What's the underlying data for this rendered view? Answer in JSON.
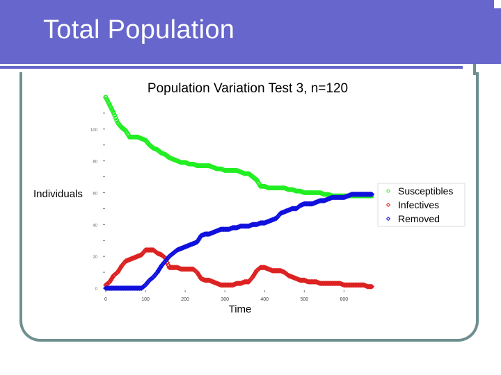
{
  "slide": {
    "title": "Total Population"
  },
  "chart_data": {
    "type": "scatter",
    "title": "Population Variation Test 3, n=120",
    "xlabel": "Time",
    "ylabel": "Individuals",
    "xlim": [
      0,
      680
    ],
    "ylim": [
      0,
      120
    ],
    "xticks": [
      0,
      100,
      200,
      300,
      400,
      500,
      600
    ],
    "yticks": [
      0,
      20,
      40,
      60,
      80,
      100
    ],
    "legend_position": "right",
    "series": [
      {
        "name": "Susceptibles",
        "color": "#22ee22",
        "marker": "circle",
        "points": [
          [
            0,
            120
          ],
          [
            10,
            115
          ],
          [
            20,
            110
          ],
          [
            30,
            104
          ],
          [
            40,
            101
          ],
          [
            50,
            99
          ],
          [
            60,
            95
          ],
          [
            70,
            95
          ],
          [
            80,
            95
          ],
          [
            90,
            94
          ],
          [
            100,
            93
          ],
          [
            110,
            90
          ],
          [
            120,
            88
          ],
          [
            130,
            87
          ],
          [
            140,
            85
          ],
          [
            150,
            84
          ],
          [
            160,
            82
          ],
          [
            170,
            81
          ],
          [
            180,
            80
          ],
          [
            190,
            79
          ],
          [
            200,
            79
          ],
          [
            210,
            78
          ],
          [
            220,
            78
          ],
          [
            230,
            77
          ],
          [
            240,
            77
          ],
          [
            250,
            77
          ],
          [
            260,
            77
          ],
          [
            270,
            76
          ],
          [
            280,
            75
          ],
          [
            290,
            75
          ],
          [
            300,
            74
          ],
          [
            310,
            74
          ],
          [
            320,
            74
          ],
          [
            330,
            74
          ],
          [
            340,
            73
          ],
          [
            350,
            72
          ],
          [
            360,
            72
          ],
          [
            370,
            70
          ],
          [
            380,
            68
          ],
          [
            390,
            64
          ],
          [
            400,
            64
          ],
          [
            410,
            63
          ],
          [
            420,
            63
          ],
          [
            430,
            63
          ],
          [
            440,
            63
          ],
          [
            450,
            63
          ],
          [
            460,
            62
          ],
          [
            470,
            62
          ],
          [
            480,
            61
          ],
          [
            490,
            61
          ],
          [
            500,
            60
          ],
          [
            510,
            60
          ],
          [
            520,
            60
          ],
          [
            530,
            60
          ],
          [
            540,
            60
          ],
          [
            550,
            59
          ],
          [
            560,
            59
          ],
          [
            570,
            58
          ],
          [
            580,
            58
          ],
          [
            590,
            58
          ],
          [
            600,
            58
          ],
          [
            610,
            58
          ],
          [
            620,
            58
          ],
          [
            630,
            58
          ],
          [
            640,
            58
          ],
          [
            650,
            58
          ],
          [
            660,
            58
          ],
          [
            670,
            58
          ]
        ]
      },
      {
        "name": "Infectives",
        "color": "#dd2222",
        "marker": "diamond",
        "points": [
          [
            0,
            2
          ],
          [
            10,
            4
          ],
          [
            20,
            8
          ],
          [
            30,
            10
          ],
          [
            40,
            14
          ],
          [
            50,
            17
          ],
          [
            60,
            18
          ],
          [
            70,
            19
          ],
          [
            80,
            20
          ],
          [
            90,
            21
          ],
          [
            100,
            24
          ],
          [
            110,
            24
          ],
          [
            120,
            24
          ],
          [
            130,
            22
          ],
          [
            140,
            21
          ],
          [
            150,
            19
          ],
          [
            160,
            13
          ],
          [
            170,
            13
          ],
          [
            180,
            13
          ],
          [
            190,
            12
          ],
          [
            200,
            12
          ],
          [
            210,
            12
          ],
          [
            220,
            12
          ],
          [
            230,
            10
          ],
          [
            240,
            6
          ],
          [
            250,
            5
          ],
          [
            260,
            5
          ],
          [
            270,
            4
          ],
          [
            280,
            3
          ],
          [
            290,
            2
          ],
          [
            300,
            2
          ],
          [
            310,
            2
          ],
          [
            320,
            2
          ],
          [
            330,
            3
          ],
          [
            340,
            3
          ],
          [
            350,
            4
          ],
          [
            360,
            4
          ],
          [
            370,
            7
          ],
          [
            380,
            11
          ],
          [
            390,
            13
          ],
          [
            400,
            13
          ],
          [
            410,
            12
          ],
          [
            420,
            11
          ],
          [
            430,
            11
          ],
          [
            440,
            11
          ],
          [
            450,
            10
          ],
          [
            460,
            8
          ],
          [
            470,
            7
          ],
          [
            480,
            6
          ],
          [
            490,
            5
          ],
          [
            500,
            5
          ],
          [
            510,
            4
          ],
          [
            520,
            4
          ],
          [
            530,
            4
          ],
          [
            540,
            3
          ],
          [
            550,
            3
          ],
          [
            560,
            3
          ],
          [
            570,
            3
          ],
          [
            580,
            3
          ],
          [
            590,
            3
          ],
          [
            600,
            2
          ],
          [
            610,
            2
          ],
          [
            620,
            2
          ],
          [
            630,
            2
          ],
          [
            640,
            2
          ],
          [
            650,
            2
          ],
          [
            660,
            1
          ],
          [
            670,
            1
          ]
        ]
      },
      {
        "name": "Removed",
        "color": "#1111dd",
        "marker": "diamond",
        "points": [
          [
            0,
            0
          ],
          [
            10,
            0
          ],
          [
            20,
            0
          ],
          [
            30,
            0
          ],
          [
            40,
            0
          ],
          [
            50,
            0
          ],
          [
            60,
            0
          ],
          [
            70,
            0
          ],
          [
            80,
            0
          ],
          [
            90,
            0
          ],
          [
            100,
            2
          ],
          [
            110,
            5
          ],
          [
            120,
            7
          ],
          [
            130,
            10
          ],
          [
            140,
            14
          ],
          [
            150,
            17
          ],
          [
            160,
            20
          ],
          [
            170,
            22
          ],
          [
            180,
            24
          ],
          [
            190,
            25
          ],
          [
            200,
            26
          ],
          [
            210,
            27
          ],
          [
            220,
            28
          ],
          [
            230,
            29
          ],
          [
            240,
            33
          ],
          [
            250,
            34
          ],
          [
            260,
            34
          ],
          [
            270,
            35
          ],
          [
            280,
            36
          ],
          [
            290,
            37
          ],
          [
            300,
            37
          ],
          [
            310,
            37
          ],
          [
            320,
            38
          ],
          [
            330,
            38
          ],
          [
            340,
            39
          ],
          [
            350,
            39
          ],
          [
            360,
            39
          ],
          [
            370,
            40
          ],
          [
            380,
            40
          ],
          [
            390,
            41
          ],
          [
            400,
            41
          ],
          [
            410,
            42
          ],
          [
            420,
            43
          ],
          [
            430,
            44
          ],
          [
            440,
            47
          ],
          [
            450,
            48
          ],
          [
            460,
            49
          ],
          [
            470,
            50
          ],
          [
            480,
            50
          ],
          [
            490,
            52
          ],
          [
            500,
            53
          ],
          [
            510,
            53
          ],
          [
            520,
            53
          ],
          [
            530,
            54
          ],
          [
            540,
            55
          ],
          [
            550,
            55
          ],
          [
            560,
            56
          ],
          [
            570,
            57
          ],
          [
            580,
            57
          ],
          [
            590,
            57
          ],
          [
            600,
            57
          ],
          [
            610,
            58
          ],
          [
            620,
            59
          ],
          [
            630,
            59
          ],
          [
            640,
            59
          ],
          [
            650,
            59
          ],
          [
            660,
            59
          ],
          [
            670,
            59
          ]
        ]
      }
    ]
  }
}
